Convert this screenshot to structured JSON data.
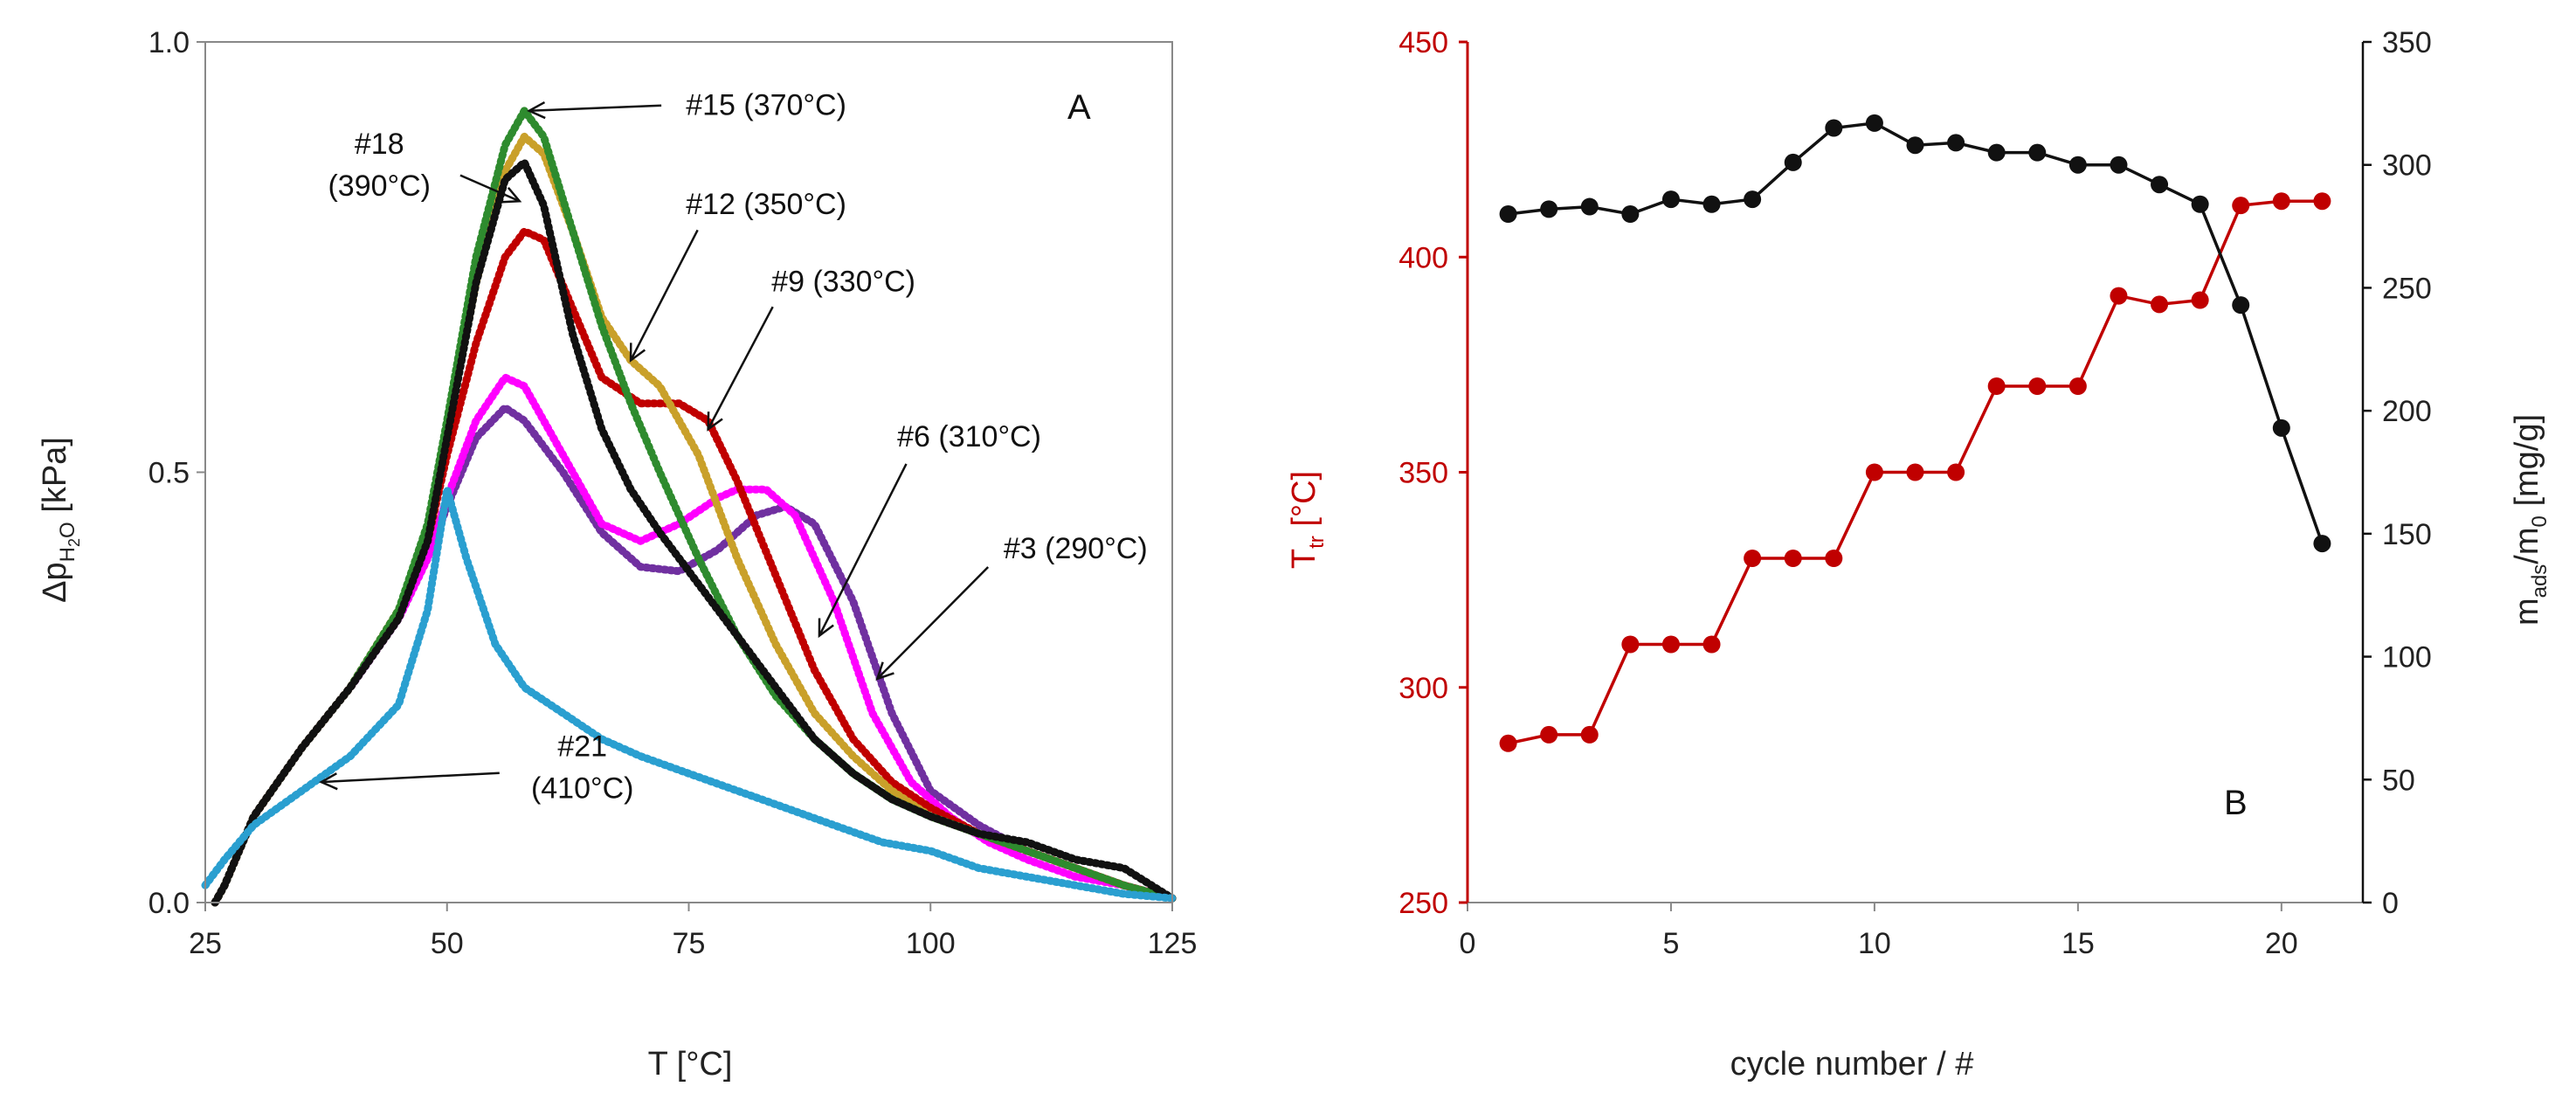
{
  "chart_data": [
    {
      "id": "A",
      "type": "line",
      "panel_label": "A",
      "xlabel": "T [°C]",
      "ylabel_main": "Δp",
      "ylabel_sub": "H",
      "ylabel_sub2": "2",
      "ylabel_sub3": "O",
      "ylabel_unit": " [kPa]",
      "xlim": [
        25,
        125
      ],
      "ylim": [
        0,
        1
      ],
      "xticks": [
        "25",
        "50",
        "75",
        "100",
        "125"
      ],
      "xtick_values": [
        25,
        50,
        75,
        100,
        125
      ],
      "yticks": [
        "0.0",
        "0.5",
        "1.0"
      ],
      "ytick_values": [
        0,
        0.5,
        1
      ],
      "series": [
        {
          "name": "#3 (290°C)",
          "color": "#7030a0",
          "x": [
            26,
            27,
            30,
            35,
            40,
            45,
            48,
            50,
            53,
            56,
            58,
            62,
            66,
            70,
            74,
            78,
            82,
            85,
            88,
            92,
            96,
            100,
            105,
            110,
            115,
            120,
            125
          ],
          "y": [
            0.0,
            0.02,
            0.1,
            0.18,
            0.25,
            0.33,
            0.4,
            0.46,
            0.54,
            0.575,
            0.56,
            0.5,
            0.43,
            0.39,
            0.385,
            0.41,
            0.45,
            0.46,
            0.44,
            0.35,
            0.22,
            0.13,
            0.09,
            0.06,
            0.04,
            0.02,
            0.005
          ]
        },
        {
          "name": "#6 (310°C)",
          "color": "#ff00ff",
          "x": [
            26,
            27,
            30,
            35,
            40,
            45,
            48,
            50,
            53,
            56,
            58,
            62,
            66,
            70,
            74,
            78,
            80,
            83,
            86,
            90,
            94,
            98,
            102,
            106,
            110,
            115,
            120,
            125
          ],
          "y": [
            0.0,
            0.02,
            0.1,
            0.18,
            0.25,
            0.33,
            0.4,
            0.47,
            0.56,
            0.61,
            0.6,
            0.52,
            0.44,
            0.42,
            0.44,
            0.47,
            0.48,
            0.48,
            0.45,
            0.35,
            0.22,
            0.14,
            0.1,
            0.07,
            0.05,
            0.03,
            0.02,
            0.005
          ]
        },
        {
          "name": "#9 (330°C)",
          "color": "#c00000",
          "x": [
            26,
            27,
            30,
            35,
            40,
            45,
            48,
            50,
            53,
            56,
            58,
            60,
            63,
            66,
            70,
            74,
            77,
            80,
            84,
            88,
            92,
            96,
            100,
            105,
            110,
            115,
            120,
            125
          ],
          "y": [
            0.0,
            0.02,
            0.1,
            0.18,
            0.25,
            0.34,
            0.42,
            0.52,
            0.65,
            0.75,
            0.78,
            0.77,
            0.69,
            0.61,
            0.58,
            0.58,
            0.56,
            0.49,
            0.38,
            0.27,
            0.19,
            0.14,
            0.11,
            0.08,
            0.06,
            0.04,
            0.02,
            0.005
          ]
        },
        {
          "name": "#12 (350°C)",
          "color": "#c9a02a",
          "x": [
            26,
            27,
            30,
            35,
            40,
            45,
            48,
            50,
            53,
            56,
            58,
            60,
            63,
            66,
            69,
            72,
            76,
            80,
            84,
            88,
            92,
            96,
            100,
            105,
            110,
            115,
            120,
            125
          ],
          "y": [
            0.0,
            0.02,
            0.1,
            0.18,
            0.25,
            0.34,
            0.43,
            0.55,
            0.72,
            0.85,
            0.89,
            0.87,
            0.78,
            0.68,
            0.63,
            0.6,
            0.52,
            0.4,
            0.3,
            0.22,
            0.17,
            0.13,
            0.1,
            0.08,
            0.06,
            0.04,
            0.02,
            0.005
          ]
        },
        {
          "name": "#15 (370°C)",
          "color": "#2e8b2e",
          "x": [
            26,
            27,
            30,
            35,
            40,
            45,
            48,
            50,
            53,
            56,
            58,
            60,
            63,
            66,
            69,
            72,
            76,
            80,
            84,
            88,
            92,
            96,
            100,
            105,
            110,
            115,
            120,
            125
          ],
          "y": [
            0.0,
            0.02,
            0.1,
            0.18,
            0.25,
            0.34,
            0.44,
            0.56,
            0.75,
            0.88,
            0.92,
            0.89,
            0.78,
            0.67,
            0.58,
            0.5,
            0.4,
            0.31,
            0.24,
            0.19,
            0.15,
            0.12,
            0.1,
            0.08,
            0.06,
            0.04,
            0.02,
            0.005
          ]
        },
        {
          "name": "#18 (390°C)",
          "color": "#111111",
          "x": [
            26,
            27,
            30,
            35,
            40,
            45,
            48,
            50,
            53,
            56,
            58,
            60,
            63,
            66,
            69,
            72,
            76,
            80,
            84,
            88,
            92,
            96,
            100,
            105,
            110,
            115,
            120,
            125
          ],
          "y": [
            0.0,
            0.02,
            0.1,
            0.18,
            0.25,
            0.33,
            0.42,
            0.54,
            0.72,
            0.84,
            0.86,
            0.81,
            0.66,
            0.55,
            0.48,
            0.43,
            0.37,
            0.31,
            0.25,
            0.19,
            0.15,
            0.12,
            0.1,
            0.08,
            0.07,
            0.05,
            0.04,
            0.005
          ]
        },
        {
          "name": "#21 (410°C)",
          "color": "#2a9fd0",
          "x": [
            25,
            27,
            30,
            35,
            40,
            45,
            48,
            50,
            52,
            55,
            58,
            62,
            66,
            70,
            75,
            80,
            85,
            90,
            95,
            100,
            105,
            110,
            115,
            120,
            125
          ],
          "y": [
            0.02,
            0.05,
            0.09,
            0.13,
            0.17,
            0.23,
            0.34,
            0.48,
            0.4,
            0.3,
            0.25,
            0.22,
            0.19,
            0.17,
            0.15,
            0.13,
            0.11,
            0.09,
            0.07,
            0.06,
            0.04,
            0.03,
            0.02,
            0.01,
            0.005
          ]
        }
      ],
      "annotations": [
        {
          "text": "#15 (370°C)",
          "label_x": 83,
          "label_y": 0.915,
          "arrow_to_x": 58.5,
          "arrow_to_y": 0.92
        },
        {
          "text": "#18",
          "text2": "(390°C)",
          "label_x": 43,
          "label_y": 0.87,
          "arrow_to_x": 57.5,
          "arrow_to_y": 0.815
        },
        {
          "text": "#12 (350°C)",
          "label_x": 83,
          "label_y": 0.8,
          "arrow_to_x": 69,
          "arrow_to_y": 0.63
        },
        {
          "text": "#9 (330°C)",
          "label_x": 91,
          "label_y": 0.71,
          "arrow_to_x": 77,
          "arrow_to_y": 0.55
        },
        {
          "text": "#6 (310°C)",
          "label_x": 104,
          "label_y": 0.53,
          "arrow_to_x": 88.5,
          "arrow_to_y": 0.31
        },
        {
          "text": "#3 (290°C)",
          "label_x": 115,
          "label_y": 0.4,
          "arrow_to_x": 94.5,
          "arrow_to_y": 0.26
        },
        {
          "text": "#21",
          "text2": "(410°C)",
          "label_x": 64,
          "label_y": 0.17,
          "arrow_to_x": 37,
          "arrow_to_y": 0.14
        }
      ]
    },
    {
      "id": "B",
      "type": "line",
      "panel_label": "B",
      "xlabel": "cycle number / #",
      "ylabel_left_main": "T",
      "ylabel_left_sub": "tr",
      "ylabel_left_unit": " [°C]",
      "ylabel_right_main": "m",
      "ylabel_right_sub": "ads",
      "ylabel_right_mid": "/m",
      "ylabel_right_sub2": "0",
      "ylabel_right_unit": " [mg/g]",
      "xlim": [
        0,
        22
      ],
      "ylim_left": [
        250,
        450
      ],
      "ylim_right": [
        0,
        350
      ],
      "xticks": [
        "0",
        "5",
        "10",
        "15",
        "20"
      ],
      "xtick_values": [
        0,
        5,
        10,
        15,
        20
      ],
      "yticks_left": [
        "250",
        "300",
        "350",
        "400",
        "450"
      ],
      "ytick_left_values": [
        250,
        300,
        350,
        400,
        450
      ],
      "yticks_right": [
        "0",
        "50",
        "100",
        "150",
        "200",
        "250",
        "300",
        "350"
      ],
      "ytick_right_values": [
        0,
        50,
        100,
        150,
        200,
        250,
        300,
        350
      ],
      "series": [
        {
          "name": "T_tr",
          "axis": "left",
          "color": "#c00000",
          "x": [
            1,
            2,
            3,
            4,
            5,
            6,
            7,
            8,
            9,
            10,
            11,
            12,
            13,
            14,
            15,
            16,
            17,
            18,
            19,
            20,
            21
          ],
          "y": [
            287,
            289,
            289,
            310,
            310,
            310,
            330,
            330,
            330,
            350,
            350,
            350,
            370,
            370,
            370,
            391,
            389,
            390,
            412,
            413,
            413
          ]
        },
        {
          "name": "m_ads/m_0",
          "axis": "right",
          "color": "#111111",
          "x": [
            1,
            2,
            3,
            4,
            5,
            6,
            7,
            8,
            9,
            10,
            11,
            12,
            13,
            14,
            15,
            16,
            17,
            18,
            19,
            20,
            21
          ],
          "y": [
            280,
            282,
            283,
            280,
            286,
            284,
            286,
            301,
            315,
            317,
            308,
            309,
            305,
            305,
            300,
            300,
            292,
            284,
            243,
            193,
            146
          ]
        }
      ]
    }
  ]
}
